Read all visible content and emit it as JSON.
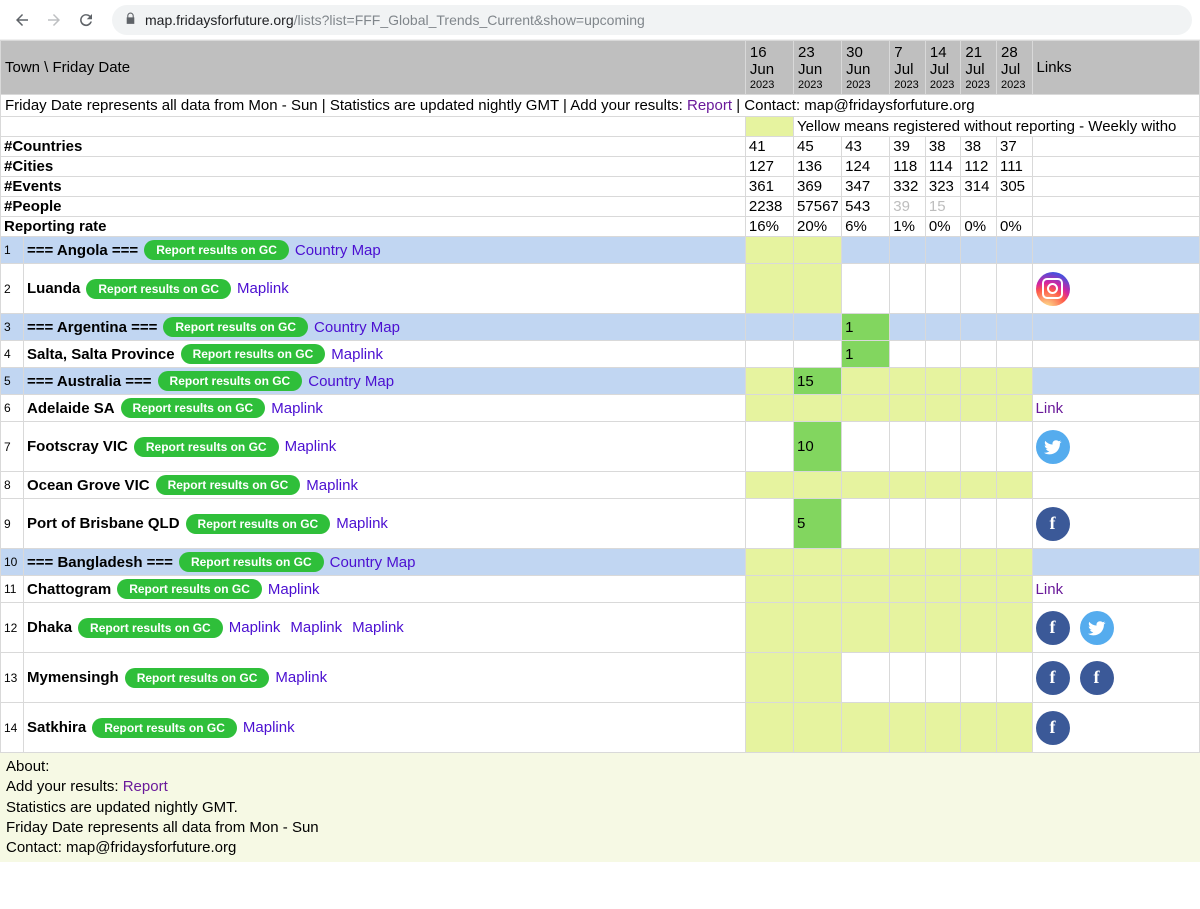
{
  "browser": {
    "url_host": "map.fridaysforfuture.org",
    "url_path": "/lists?list=FFF_Global_Trends_Current&show=upcoming"
  },
  "header": {
    "left_label": "Town   \\   Friday Date",
    "links_label": "Links",
    "dates": [
      {
        "day": "16",
        "mon": "Jun",
        "yr": "2023"
      },
      {
        "day": "23",
        "mon": "Jun",
        "yr": "2023"
      },
      {
        "day": "30",
        "mon": "Jun",
        "yr": "2023"
      },
      {
        "day": "7",
        "mon": "Jul",
        "yr": "2023"
      },
      {
        "day": "14",
        "mon": "Jul",
        "yr": "2023"
      },
      {
        "day": "21",
        "mon": "Jul",
        "yr": "2023"
      },
      {
        "day": "28",
        "mon": "Jul",
        "yr": "2023"
      }
    ]
  },
  "notice": {
    "text_a": "Friday Date represents all data from Mon - Sun | Statistics are updated nightly GMT | Add your results: ",
    "report_label": "Report",
    "text_b": " | Contact: map@fridaysforfuture.org"
  },
  "legend": {
    "text": "Yellow means registered without reporting - Weekly witho"
  },
  "stats": [
    {
      "label": "#Countries",
      "vals": [
        "41",
        "45",
        "43",
        "39",
        "38",
        "38",
        "37"
      ]
    },
    {
      "label": "#Cities",
      "vals": [
        "127",
        "136",
        "124",
        "118",
        "114",
        "112",
        "111"
      ]
    },
    {
      "label": "#Events",
      "vals": [
        "361",
        "369",
        "347",
        "332",
        "323",
        "314",
        "305"
      ]
    },
    {
      "label": "#People",
      "vals": [
        "2238",
        "57567",
        "543",
        "39",
        "15",
        "",
        ""
      ],
      "grey": [
        3,
        4
      ]
    },
    {
      "label": "Reporting rate",
      "vals": [
        "16%",
        "20%",
        "6%",
        "1%",
        "0%",
        "0%",
        "0%"
      ]
    }
  ],
  "btn": {
    "report": "Report results on GC"
  },
  "links": {
    "country_map": "Country Map",
    "maplink": "Maplink",
    "link": "Link"
  },
  "rows": [
    {
      "n": "1",
      "kind": "country",
      "name": "=== Angola ===",
      "after": "country_map",
      "cells": [
        "y",
        "y",
        "",
        "",
        "",
        "",
        ""
      ]
    },
    {
      "n": "2",
      "kind": "city",
      "tall": true,
      "name": "Luanda",
      "after": "maplink",
      "cells": [
        "y",
        "y",
        "",
        "",
        "",
        "",
        ""
      ],
      "icons": [
        "ig"
      ]
    },
    {
      "n": "3",
      "kind": "country",
      "name": "=== Argentina ===",
      "after": "country_map",
      "cells": [
        "",
        "",
        "g:1",
        "",
        "",
        "",
        ""
      ]
    },
    {
      "n": "4",
      "kind": "city",
      "name": "Salta, Salta Province",
      "after": "maplink",
      "cells": [
        "",
        "",
        "g:1",
        "",
        "",
        "",
        ""
      ]
    },
    {
      "n": "5",
      "kind": "country",
      "name": "=== Australia ===",
      "after": "country_map",
      "cells": [
        "y",
        "g:15",
        "y",
        "y",
        "y",
        "y",
        "y"
      ]
    },
    {
      "n": "6",
      "kind": "city",
      "name": "Adelaide SA",
      "after": "maplink",
      "cells": [
        "y",
        "y",
        "y",
        "y",
        "y",
        "y",
        "y"
      ],
      "link": "Link"
    },
    {
      "n": "7",
      "kind": "city",
      "tall": true,
      "name": "Footscray VIC",
      "after": "maplink",
      "cells": [
        "",
        "g:10",
        "",
        "",
        "",
        "",
        ""
      ],
      "icons": [
        "tw"
      ]
    },
    {
      "n": "8",
      "kind": "city",
      "name": "Ocean Grove VIC",
      "after": "maplink",
      "cells": [
        "y",
        "y",
        "y",
        "y",
        "y",
        "y",
        "y"
      ]
    },
    {
      "n": "9",
      "kind": "city",
      "tall": true,
      "name": "Port of Brisbane QLD",
      "after": "maplink",
      "cells": [
        "",
        "g:5",
        "",
        "",
        "",
        "",
        ""
      ],
      "icons": [
        "fb"
      ]
    },
    {
      "n": "10",
      "kind": "country",
      "name": "=== Bangladesh ===",
      "after": "country_map",
      "cells": [
        "y",
        "y",
        "y",
        "y",
        "y",
        "y",
        "y"
      ]
    },
    {
      "n": "11",
      "kind": "city",
      "name": "Chattogram",
      "after": "maplink",
      "cells": [
        "y",
        "y",
        "y",
        "y",
        "y",
        "y",
        "y"
      ],
      "link": "Link"
    },
    {
      "n": "12",
      "kind": "city",
      "tall": true,
      "name": "Dhaka",
      "after": "maplink3",
      "cells": [
        "y",
        "y",
        "y",
        "y",
        "y",
        "y",
        "y"
      ],
      "icons": [
        "fb",
        "tw"
      ]
    },
    {
      "n": "13",
      "kind": "city",
      "tall": true,
      "name": "Mymensingh",
      "after": "maplink",
      "cells": [
        "y",
        "y",
        "",
        "",
        "",
        "",
        ""
      ],
      "icons": [
        "fb",
        "fb"
      ]
    },
    {
      "n": "14",
      "kind": "city",
      "tall": true,
      "name": "Satkhira",
      "after": "maplink",
      "cells": [
        "y",
        "y",
        "y",
        "y",
        "y",
        "y",
        "y"
      ],
      "icons": [
        "fb"
      ]
    }
  ],
  "about": {
    "l1": "About:",
    "l2a": "Add your results: ",
    "l2b": "Report",
    "l3": "Statistics are updated nightly GMT.",
    "l4": "Friday Date represents all data from Mon - Sun",
    "l5": "Contact: map@fridaysforfuture.org"
  }
}
